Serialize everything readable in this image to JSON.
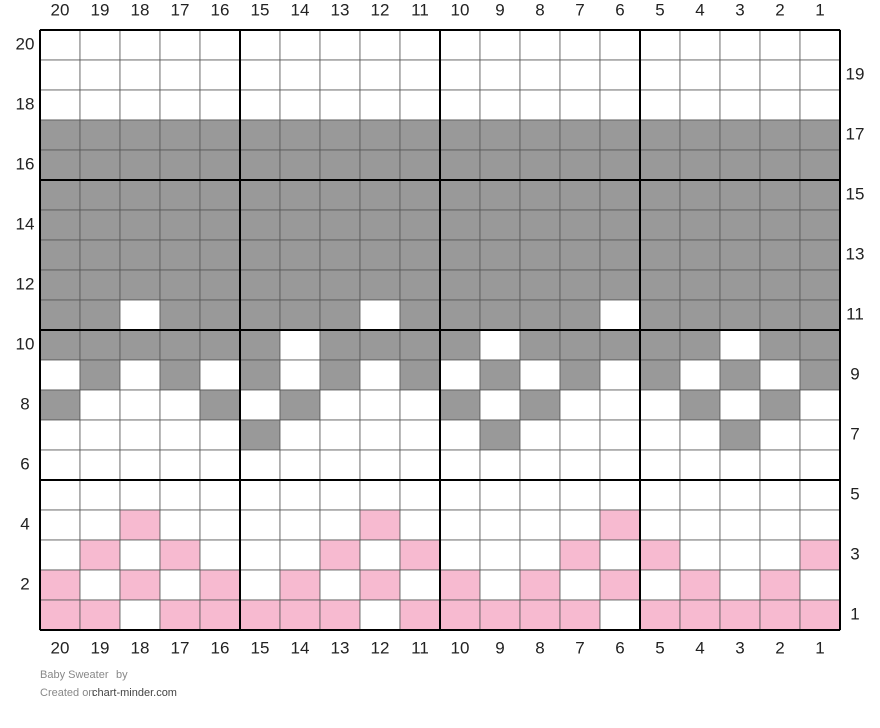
{
  "columns": [
    20,
    19,
    18,
    17,
    16,
    15,
    14,
    13,
    12,
    11,
    10,
    9,
    8,
    7,
    6,
    5,
    4,
    3,
    2,
    1
  ],
  "rows": [
    {
      "number": 20,
      "cells": "WWWWWWWWWWWWWWWWWWWW"
    },
    {
      "number": 19,
      "cells": "WWWWWWWWWWWWWWWWWWWW"
    },
    {
      "number": 18,
      "cells": "WWWWWWWWWWWWWWWWWWWW"
    },
    {
      "number": 17,
      "cells": "GGGGGGGGGGGGGGGGGGGG"
    },
    {
      "number": 16,
      "cells": "GGGGGGGGGGGGGGGGGGGG"
    },
    {
      "number": 15,
      "cells": "GGGGGGGGGGGGGGGGGGGG"
    },
    {
      "number": 14,
      "cells": "GGGGGGGGGGGGGGGGGGGG"
    },
    {
      "number": 13,
      "cells": "GGGGGGGGGGGGGGGGGGGG"
    },
    {
      "number": 12,
      "cells": "GGGGGGGGGGGGGGGGGGGG"
    },
    {
      "number": 11,
      "cells": "GGWGGGGGWGGGGGWGGGGG"
    },
    {
      "number": 10,
      "cells": "GGGGGGWGGGGWGGGGGWGG"
    },
    {
      "number": 9,
      "cells": "WGWGWGWGWGWGWGWGWGWG"
    },
    {
      "number": 8,
      "cells": "GWWWGWGWWWGWGWWWGWGW"
    },
    {
      "number": 7,
      "cells": "WWWWWGWWWWWGWWWWWGWW"
    },
    {
      "number": 6,
      "cells": "WWWWWWWWWWWWWWWWWWWW"
    },
    {
      "number": 5,
      "cells": "WWWWWWWWWWWWWWWWWWWW"
    },
    {
      "number": 4,
      "cells": "WWPWWWWWPWWWWWPWWWWW"
    },
    {
      "number": 3,
      "cells": "WPWPWWWPWPWWWPWPWWWP"
    },
    {
      "number": 2,
      "cells": "PWPWPWPWPWPWPWPWPWPW"
    },
    {
      "number": 1,
      "cells": "PPWPPPPPWPPPPPWPPPPP"
    }
  ],
  "palette": {
    "W": "#ffffff",
    "G": "#999999",
    "P": "#f7bad0"
  },
  "footer": {
    "title": "Baby Sweater",
    "by": "by",
    "created_on": "Created on",
    "site": "chart-minder.com"
  }
}
